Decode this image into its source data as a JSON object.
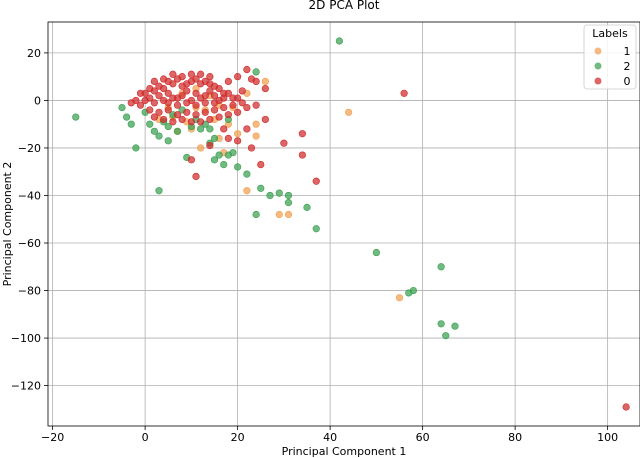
{
  "chart_data": {
    "type": "scatter",
    "title": "2D PCA Plot",
    "xlabel": "Principal Component 1",
    "ylabel": "Principal Component 2",
    "xlim": [
      -21,
      107
    ],
    "ylim": [
      -137,
      33
    ],
    "xticks": [
      -20,
      0,
      20,
      40,
      60,
      80,
      100
    ],
    "yticks": [
      20,
      0,
      -20,
      -40,
      -60,
      -80,
      -100,
      -120
    ],
    "grid": true,
    "legend": {
      "title": "Labels",
      "placement": "top-right",
      "entries": [
        "1",
        "2",
        "0"
      ]
    },
    "series": [
      {
        "name": "1",
        "color": "#f0a050",
        "points": [
          [
            44,
            -5
          ],
          [
            55,
            -83
          ],
          [
            29,
            -48
          ],
          [
            31,
            -48
          ],
          [
            22,
            -38
          ],
          [
            24,
            -10
          ],
          [
            13,
            -4
          ],
          [
            15,
            -8
          ],
          [
            12,
            -20
          ],
          [
            10,
            -12
          ],
          [
            18,
            -10
          ],
          [
            16,
            -16
          ],
          [
            17,
            -22
          ],
          [
            9,
            -9
          ],
          [
            6,
            -7
          ],
          [
            20,
            -14
          ],
          [
            8,
            3
          ],
          [
            11,
            5
          ],
          [
            14,
            2
          ],
          [
            5,
            -3
          ],
          [
            19,
            -3
          ],
          [
            22,
            3
          ],
          [
            26,
            8
          ],
          [
            7,
            -13
          ],
          [
            3,
            -8
          ],
          [
            16,
            -2
          ],
          [
            24,
            -15
          ],
          [
            11,
            -3
          ]
        ]
      },
      {
        "name": "2",
        "color": "#3aa050",
        "points": [
          [
            42,
            25
          ],
          [
            -15,
            -7
          ],
          [
            -2,
            -20
          ],
          [
            3,
            -38
          ],
          [
            9,
            -24
          ],
          [
            12,
            -12
          ],
          [
            15,
            -25
          ],
          [
            14,
            -18
          ],
          [
            17,
            -27
          ],
          [
            20,
            -28
          ],
          [
            22,
            -31
          ],
          [
            25,
            -37
          ],
          [
            24,
            -48
          ],
          [
            27,
            -40
          ],
          [
            29,
            -39
          ],
          [
            31,
            -43
          ],
          [
            31,
            -40
          ],
          [
            35,
            -45
          ],
          [
            37,
            -54
          ],
          [
            50,
            -64
          ],
          [
            57,
            -81
          ],
          [
            58,
            -80
          ],
          [
            64,
            -70
          ],
          [
            64,
            -94
          ],
          [
            65,
            -99
          ],
          [
            67,
            -95
          ],
          [
            -4,
            -7
          ],
          [
            -3,
            -10
          ],
          [
            1,
            -10
          ],
          [
            2,
            -13
          ],
          [
            5,
            -11
          ],
          [
            7,
            -13
          ],
          [
            4,
            -9
          ],
          [
            6,
            -6
          ],
          [
            10,
            -11
          ],
          [
            13,
            -10
          ],
          [
            15,
            -16
          ],
          [
            16,
            -23
          ],
          [
            18,
            -23
          ],
          [
            0,
            -5
          ],
          [
            -5,
            -3
          ],
          [
            8,
            -4
          ],
          [
            11,
            -8
          ],
          [
            14,
            -12
          ],
          [
            19,
            -22
          ],
          [
            24,
            12
          ],
          [
            3,
            -15
          ],
          [
            5,
            -17
          ],
          [
            18,
            -8
          ]
        ]
      },
      {
        "name": "0",
        "color": "#d02a2a",
        "points": [
          [
            104,
            -129
          ],
          [
            56,
            3
          ],
          [
            37,
            -34
          ],
          [
            34,
            -23
          ],
          [
            34,
            -14
          ],
          [
            30,
            -18
          ],
          [
            25,
            -27
          ],
          [
            20,
            -17
          ],
          [
            23,
            -20
          ],
          [
            18,
            -16
          ],
          [
            11,
            -32
          ],
          [
            14,
            -19
          ],
          [
            10,
            -25
          ],
          [
            26,
            -8
          ],
          [
            22,
            -12
          ],
          [
            17,
            -12
          ],
          [
            20,
            10
          ],
          [
            22,
            13
          ],
          [
            24,
            8
          ],
          [
            26,
            5
          ],
          [
            23,
            9
          ],
          [
            18,
            8
          ],
          [
            19,
            1
          ],
          [
            21,
            4
          ],
          [
            -1,
            -2
          ],
          [
            0,
            0
          ],
          [
            1,
            1
          ],
          [
            2,
            -1
          ],
          [
            3,
            2
          ],
          [
            4,
            0
          ],
          [
            5,
            3
          ],
          [
            6,
            1
          ],
          [
            7,
            -2
          ],
          [
            8,
            2
          ],
          [
            9,
            4
          ],
          [
            10,
            0
          ],
          [
            11,
            3
          ],
          [
            12,
            1
          ],
          [
            13,
            -1
          ],
          [
            14,
            4
          ],
          [
            15,
            2
          ],
          [
            16,
            0
          ],
          [
            17,
            3
          ],
          [
            3,
            6
          ],
          [
            5,
            8
          ],
          [
            7,
            9
          ],
          [
            9,
            7
          ],
          [
            11,
            9
          ],
          [
            13,
            8
          ],
          [
            15,
            6
          ],
          [
            2,
            4
          ],
          [
            4,
            5
          ],
          [
            6,
            7
          ],
          [
            8,
            6
          ],
          [
            10,
            8
          ],
          [
            12,
            7
          ],
          [
            14,
            7
          ],
          [
            16,
            5
          ],
          [
            0,
            3
          ],
          [
            1,
            -4
          ],
          [
            3,
            -5
          ],
          [
            5,
            -4
          ],
          [
            7,
            -6
          ],
          [
            9,
            -5
          ],
          [
            11,
            -6
          ],
          [
            13,
            -5
          ],
          [
            15,
            -4
          ],
          [
            17,
            -3
          ],
          [
            19,
            -2
          ],
          [
            21,
            -1
          ],
          [
            2,
            -7
          ],
          [
            4,
            -8
          ],
          [
            6,
            -9
          ],
          [
            8,
            -8
          ],
          [
            10,
            -9
          ],
          [
            12,
            -9
          ],
          [
            14,
            -8
          ],
          [
            16,
            -7
          ],
          [
            -2,
            0
          ],
          [
            -1,
            3
          ],
          [
            1,
            5
          ],
          [
            18,
            3
          ],
          [
            20,
            -5
          ],
          [
            22,
            -3
          ],
          [
            12,
            11
          ],
          [
            14,
            10
          ],
          [
            6,
            11
          ],
          [
            8,
            10
          ],
          [
            10,
            11
          ],
          [
            4,
            9
          ],
          [
            2,
            8
          ],
          [
            18,
            -6
          ],
          [
            5,
            -1
          ],
          [
            7,
            1
          ],
          [
            9,
            -1
          ],
          [
            11,
            -2
          ],
          [
            13,
            2
          ],
          [
            15,
            -1
          ],
          [
            17,
            1
          ],
          [
            -3,
            -1
          ],
          [
            24,
            -2
          ],
          [
            20,
            1
          ]
        ]
      }
    ]
  }
}
